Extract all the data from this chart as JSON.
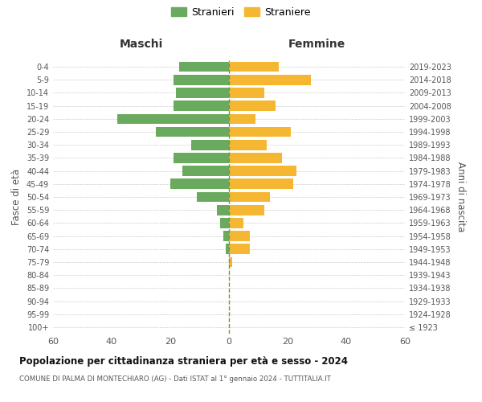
{
  "age_groups": [
    "100+",
    "95-99",
    "90-94",
    "85-89",
    "80-84",
    "75-79",
    "70-74",
    "65-69",
    "60-64",
    "55-59",
    "50-54",
    "45-49",
    "40-44",
    "35-39",
    "30-34",
    "25-29",
    "20-24",
    "15-19",
    "10-14",
    "5-9",
    "0-4"
  ],
  "birth_years": [
    "≤ 1923",
    "1924-1928",
    "1929-1933",
    "1934-1938",
    "1939-1943",
    "1944-1948",
    "1949-1953",
    "1954-1958",
    "1959-1963",
    "1964-1968",
    "1969-1973",
    "1974-1978",
    "1979-1983",
    "1984-1988",
    "1989-1993",
    "1994-1998",
    "1999-2003",
    "2004-2008",
    "2009-2013",
    "2014-2018",
    "2019-2023"
  ],
  "maschi": [
    0,
    0,
    0,
    0,
    0,
    0,
    1,
    2,
    3,
    4,
    11,
    20,
    16,
    19,
    13,
    25,
    38,
    19,
    18,
    19,
    17
  ],
  "femmine": [
    0,
    0,
    0,
    0,
    0,
    1,
    7,
    7,
    5,
    12,
    14,
    22,
    23,
    18,
    13,
    21,
    9,
    16,
    12,
    28,
    17
  ],
  "maschi_color": "#6aaa5e",
  "femmine_color": "#f5b731",
  "center_line_color": "#8b8b3a",
  "grid_color": "#cccccc",
  "title": "Popolazione per cittadinanza straniera per età e sesso - 2024",
  "subtitle": "COMUNE DI PALMA DI MONTECHIARO (AG) - Dati ISTAT al 1° gennaio 2024 - TUTTITALIA.IT",
  "ylabel_left": "Fasce di età",
  "ylabel_right": "Anni di nascita",
  "header_maschi": "Maschi",
  "header_femmine": "Femmine",
  "legend_maschi": "Stranieri",
  "legend_femmine": "Straniere",
  "xlim": 60
}
